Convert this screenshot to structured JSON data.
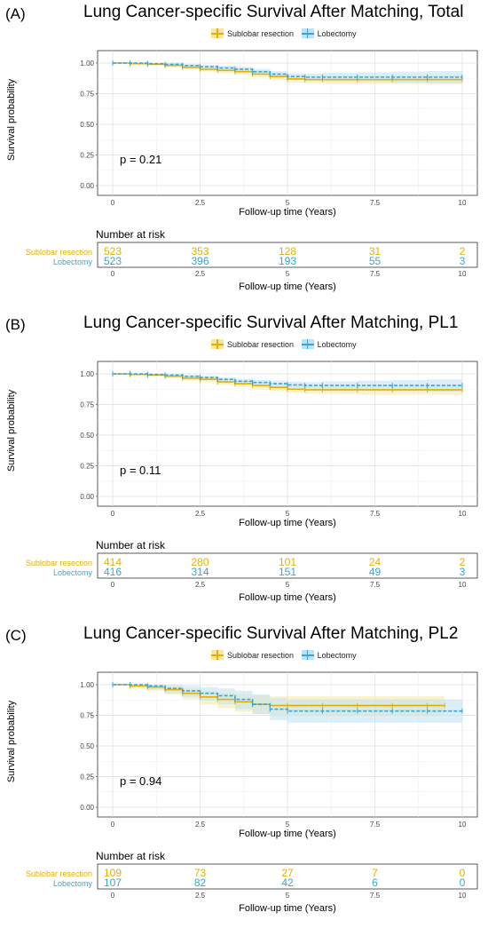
{
  "common": {
    "ylabel": "Survival probability",
    "xlabel": "Follow-up time (Years)",
    "risk_title": "Number at risk",
    "series_names": [
      "Sublobar resection",
      "Lobectomy"
    ],
    "x_ticks": [
      "0",
      "2.5",
      "5",
      "7.5",
      "10"
    ],
    "y_ticks": [
      "0.00",
      "0.25",
      "0.50",
      "0.75",
      "1.00"
    ],
    "colors": {
      "sublobar": "#E1B000",
      "lobectomy": "#3AA4D6",
      "sublobar_ci": "#F6E7A6",
      "lobectomy_ci": "#BFE2F3"
    }
  },
  "chart_data": [
    {
      "type": "line",
      "panel": "(A)",
      "title": "Lung Cancer-specific Survival After Matching, Total",
      "p_value": "p = 0.21",
      "xlabel": "Follow-up time (Years)",
      "ylabel": "Survival probability",
      "xlim": [
        0,
        10
      ],
      "ylim": [
        0,
        1
      ],
      "legend_position": "top",
      "grid": true,
      "series": [
        {
          "name": "Sublobar resection",
          "x": [
            0,
            0.5,
            1,
            1.5,
            2,
            2.5,
            3,
            3.5,
            4,
            4.5,
            5,
            5.5,
            6,
            7,
            8,
            9,
            10
          ],
          "y": [
            1.0,
            0.995,
            0.99,
            0.98,
            0.965,
            0.95,
            0.94,
            0.93,
            0.91,
            0.89,
            0.87,
            0.865,
            0.865,
            0.865,
            0.865,
            0.865,
            0.865
          ],
          "ci_low": [
            1.0,
            0.99,
            0.98,
            0.965,
            0.948,
            0.93,
            0.918,
            0.905,
            0.885,
            0.862,
            0.84,
            0.832,
            0.83,
            0.83,
            0.83,
            0.83,
            0.83
          ],
          "ci_high": [
            1.0,
            1.0,
            0.998,
            0.993,
            0.983,
            0.97,
            0.962,
            0.955,
            0.937,
            0.918,
            0.9,
            0.898,
            0.9,
            0.9,
            0.9,
            0.9,
            0.9
          ]
        },
        {
          "name": "Lobectomy",
          "x": [
            0,
            0.5,
            1,
            1.5,
            2,
            2.5,
            3,
            3.5,
            4,
            4.5,
            5,
            5.5,
            6,
            7,
            8,
            9,
            10
          ],
          "y": [
            1.0,
            1.0,
            0.995,
            0.99,
            0.98,
            0.97,
            0.96,
            0.95,
            0.93,
            0.91,
            0.89,
            0.885,
            0.885,
            0.885,
            0.885,
            0.885,
            0.885
          ],
          "ci_low": [
            1.0,
            0.995,
            0.988,
            0.98,
            0.968,
            0.955,
            0.942,
            0.93,
            0.91,
            0.886,
            0.862,
            0.855,
            0.85,
            0.845,
            0.84,
            0.835,
            0.83
          ],
          "ci_high": [
            1.0,
            1.0,
            1.0,
            0.998,
            0.992,
            0.985,
            0.978,
            0.97,
            0.952,
            0.934,
            0.918,
            0.915,
            0.92,
            0.925,
            0.93,
            0.935,
            0.94
          ]
        }
      ],
      "risk_table": {
        "x": [
          0,
          2.5,
          5,
          7.5,
          10
        ],
        "Sublobar resection": [
          523,
          353,
          128,
          31,
          2
        ],
        "Lobectomy": [
          523,
          396,
          193,
          55,
          3
        ]
      }
    },
    {
      "type": "line",
      "panel": "(B)",
      "title": "Lung Cancer-specific Survival After Matching, PL1",
      "p_value": "p = 0.11",
      "xlabel": "Follow-up time (Years)",
      "ylabel": "Survival probability",
      "xlim": [
        0,
        10
      ],
      "ylim": [
        0,
        1
      ],
      "legend_position": "top",
      "grid": true,
      "series": [
        {
          "name": "Sublobar resection",
          "x": [
            0,
            0.5,
            1,
            1.5,
            2,
            2.5,
            3,
            3.5,
            4,
            4.5,
            5,
            5.5,
            6,
            7,
            8,
            9,
            10
          ],
          "y": [
            1.0,
            0.995,
            0.99,
            0.98,
            0.965,
            0.955,
            0.935,
            0.92,
            0.905,
            0.89,
            0.875,
            0.87,
            0.87,
            0.87,
            0.87,
            0.87,
            0.87
          ],
          "ci_low": [
            1.0,
            0.99,
            0.98,
            0.965,
            0.945,
            0.932,
            0.91,
            0.893,
            0.876,
            0.86,
            0.845,
            0.838,
            0.835,
            0.83,
            0.83,
            0.83,
            0.83
          ],
          "ci_high": [
            1.0,
            1.0,
            0.998,
            0.993,
            0.983,
            0.976,
            0.958,
            0.945,
            0.932,
            0.918,
            0.905,
            0.902,
            0.905,
            0.91,
            0.91,
            0.91,
            0.91
          ]
        },
        {
          "name": "Lobectomy",
          "x": [
            0,
            0.5,
            1,
            1.5,
            2,
            2.5,
            3,
            3.5,
            4,
            4.5,
            5,
            5.5,
            6,
            7,
            8,
            9,
            10
          ],
          "y": [
            1.0,
            1.0,
            0.995,
            0.99,
            0.98,
            0.97,
            0.955,
            0.94,
            0.93,
            0.92,
            0.91,
            0.905,
            0.905,
            0.905,
            0.905,
            0.905,
            0.905
          ],
          "ci_low": [
            1.0,
            0.995,
            0.988,
            0.98,
            0.968,
            0.955,
            0.938,
            0.92,
            0.908,
            0.896,
            0.884,
            0.877,
            0.872,
            0.865,
            0.86,
            0.855,
            0.85
          ],
          "ci_high": [
            1.0,
            1.0,
            1.0,
            0.998,
            0.992,
            0.985,
            0.972,
            0.96,
            0.952,
            0.944,
            0.936,
            0.933,
            0.938,
            0.945,
            0.95,
            0.955,
            0.96
          ]
        }
      ],
      "risk_table": {
        "x": [
          0,
          2.5,
          5,
          7.5,
          10
        ],
        "Sublobar resection": [
          414,
          280,
          101,
          24,
          2
        ],
        "Lobectomy": [
          416,
          314,
          151,
          49,
          3
        ]
      }
    },
    {
      "type": "line",
      "panel": "(C)",
      "title": "Lung Cancer-specific Survival After Matching, PL2",
      "p_value": "p = 0.94",
      "xlabel": "Follow-up time (Years)",
      "ylabel": "Survival probability",
      "xlim": [
        0,
        10
      ],
      "ylim": [
        0,
        1
      ],
      "legend_position": "top",
      "grid": true,
      "series": [
        {
          "name": "Sublobar resection",
          "x": [
            0,
            0.5,
            1,
            1.5,
            2,
            2.5,
            3,
            3.5,
            4,
            4.5,
            5,
            6,
            7,
            8,
            9,
            9.5
          ],
          "y": [
            1.0,
            0.99,
            0.98,
            0.96,
            0.93,
            0.9,
            0.88,
            0.86,
            0.84,
            0.83,
            0.83,
            0.83,
            0.83,
            0.83,
            0.83,
            0.83
          ],
          "ci_low": [
            1.0,
            0.97,
            0.95,
            0.92,
            0.88,
            0.84,
            0.81,
            0.78,
            0.76,
            0.75,
            0.75,
            0.75,
            0.75,
            0.75,
            0.75,
            0.75
          ],
          "ci_high": [
            1.0,
            1.0,
            1.0,
            0.99,
            0.97,
            0.95,
            0.935,
            0.925,
            0.915,
            0.905,
            0.905,
            0.905,
            0.905,
            0.905,
            0.905,
            0.905
          ]
        },
        {
          "name": "Lobectomy",
          "x": [
            0,
            0.5,
            1,
            1.5,
            2,
            2.5,
            3,
            3.5,
            4,
            4.5,
            5,
            6,
            7,
            8,
            9,
            10
          ],
          "y": [
            1.0,
            1.0,
            0.99,
            0.97,
            0.95,
            0.93,
            0.91,
            0.88,
            0.84,
            0.8,
            0.785,
            0.785,
            0.785,
            0.785,
            0.785,
            0.785
          ],
          "ci_low": [
            1.0,
            0.98,
            0.96,
            0.93,
            0.9,
            0.87,
            0.84,
            0.8,
            0.76,
            0.71,
            0.69,
            0.69,
            0.69,
            0.69,
            0.69,
            0.69
          ],
          "ci_high": [
            1.0,
            1.0,
            1.0,
            1.0,
            0.99,
            0.98,
            0.97,
            0.95,
            0.92,
            0.89,
            0.88,
            0.88,
            0.88,
            0.88,
            0.88,
            0.88
          ]
        }
      ],
      "risk_table": {
        "x": [
          0,
          2.5,
          5,
          7.5,
          10
        ],
        "Sublobar resection": [
          109,
          73,
          27,
          7,
          0
        ],
        "Lobectomy": [
          107,
          82,
          42,
          6,
          0
        ]
      }
    }
  ]
}
